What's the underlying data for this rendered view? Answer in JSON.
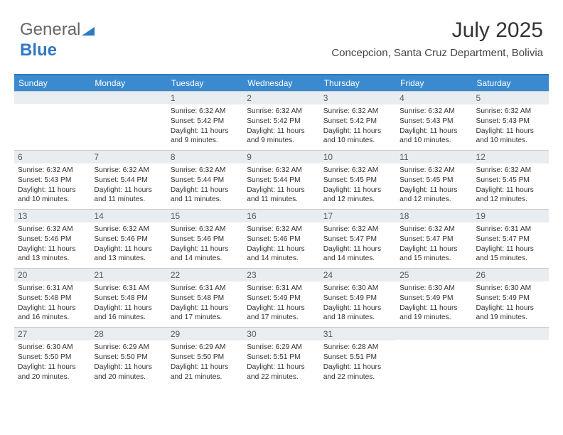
{
  "brand": {
    "part1": "General",
    "part2": "Blue"
  },
  "title": "July 2025",
  "location": "Concepcion, Santa Cruz Department, Bolivia",
  "colors": {
    "header_bg": "#3b8ad0",
    "accent_line": "#2f78c4",
    "daynum_bg": "#e9edf0",
    "text": "#333333"
  },
  "day_headers": [
    "Sunday",
    "Monday",
    "Tuesday",
    "Wednesday",
    "Thursday",
    "Friday",
    "Saturday"
  ],
  "weeks": [
    [
      {
        "n": "",
        "sr": "",
        "ss": "",
        "dl": ""
      },
      {
        "n": "",
        "sr": "",
        "ss": "",
        "dl": ""
      },
      {
        "n": "1",
        "sr": "Sunrise: 6:32 AM",
        "ss": "Sunset: 5:42 PM",
        "dl": "Daylight: 11 hours and 9 minutes."
      },
      {
        "n": "2",
        "sr": "Sunrise: 6:32 AM",
        "ss": "Sunset: 5:42 PM",
        "dl": "Daylight: 11 hours and 9 minutes."
      },
      {
        "n": "3",
        "sr": "Sunrise: 6:32 AM",
        "ss": "Sunset: 5:42 PM",
        "dl": "Daylight: 11 hours and 10 minutes."
      },
      {
        "n": "4",
        "sr": "Sunrise: 6:32 AM",
        "ss": "Sunset: 5:43 PM",
        "dl": "Daylight: 11 hours and 10 minutes."
      },
      {
        "n": "5",
        "sr": "Sunrise: 6:32 AM",
        "ss": "Sunset: 5:43 PM",
        "dl": "Daylight: 11 hours and 10 minutes."
      }
    ],
    [
      {
        "n": "6",
        "sr": "Sunrise: 6:32 AM",
        "ss": "Sunset: 5:43 PM",
        "dl": "Daylight: 11 hours and 10 minutes."
      },
      {
        "n": "7",
        "sr": "Sunrise: 6:32 AM",
        "ss": "Sunset: 5:44 PM",
        "dl": "Daylight: 11 hours and 11 minutes."
      },
      {
        "n": "8",
        "sr": "Sunrise: 6:32 AM",
        "ss": "Sunset: 5:44 PM",
        "dl": "Daylight: 11 hours and 11 minutes."
      },
      {
        "n": "9",
        "sr": "Sunrise: 6:32 AM",
        "ss": "Sunset: 5:44 PM",
        "dl": "Daylight: 11 hours and 11 minutes."
      },
      {
        "n": "10",
        "sr": "Sunrise: 6:32 AM",
        "ss": "Sunset: 5:45 PM",
        "dl": "Daylight: 11 hours and 12 minutes."
      },
      {
        "n": "11",
        "sr": "Sunrise: 6:32 AM",
        "ss": "Sunset: 5:45 PM",
        "dl": "Daylight: 11 hours and 12 minutes."
      },
      {
        "n": "12",
        "sr": "Sunrise: 6:32 AM",
        "ss": "Sunset: 5:45 PM",
        "dl": "Daylight: 11 hours and 12 minutes."
      }
    ],
    [
      {
        "n": "13",
        "sr": "Sunrise: 6:32 AM",
        "ss": "Sunset: 5:46 PM",
        "dl": "Daylight: 11 hours and 13 minutes."
      },
      {
        "n": "14",
        "sr": "Sunrise: 6:32 AM",
        "ss": "Sunset: 5:46 PM",
        "dl": "Daylight: 11 hours and 13 minutes."
      },
      {
        "n": "15",
        "sr": "Sunrise: 6:32 AM",
        "ss": "Sunset: 5:46 PM",
        "dl": "Daylight: 11 hours and 14 minutes."
      },
      {
        "n": "16",
        "sr": "Sunrise: 6:32 AM",
        "ss": "Sunset: 5:46 PM",
        "dl": "Daylight: 11 hours and 14 minutes."
      },
      {
        "n": "17",
        "sr": "Sunrise: 6:32 AM",
        "ss": "Sunset: 5:47 PM",
        "dl": "Daylight: 11 hours and 14 minutes."
      },
      {
        "n": "18",
        "sr": "Sunrise: 6:32 AM",
        "ss": "Sunset: 5:47 PM",
        "dl": "Daylight: 11 hours and 15 minutes."
      },
      {
        "n": "19",
        "sr": "Sunrise: 6:31 AM",
        "ss": "Sunset: 5:47 PM",
        "dl": "Daylight: 11 hours and 15 minutes."
      }
    ],
    [
      {
        "n": "20",
        "sr": "Sunrise: 6:31 AM",
        "ss": "Sunset: 5:48 PM",
        "dl": "Daylight: 11 hours and 16 minutes."
      },
      {
        "n": "21",
        "sr": "Sunrise: 6:31 AM",
        "ss": "Sunset: 5:48 PM",
        "dl": "Daylight: 11 hours and 16 minutes."
      },
      {
        "n": "22",
        "sr": "Sunrise: 6:31 AM",
        "ss": "Sunset: 5:48 PM",
        "dl": "Daylight: 11 hours and 17 minutes."
      },
      {
        "n": "23",
        "sr": "Sunrise: 6:31 AM",
        "ss": "Sunset: 5:49 PM",
        "dl": "Daylight: 11 hours and 17 minutes."
      },
      {
        "n": "24",
        "sr": "Sunrise: 6:30 AM",
        "ss": "Sunset: 5:49 PM",
        "dl": "Daylight: 11 hours and 18 minutes."
      },
      {
        "n": "25",
        "sr": "Sunrise: 6:30 AM",
        "ss": "Sunset: 5:49 PM",
        "dl": "Daylight: 11 hours and 19 minutes."
      },
      {
        "n": "26",
        "sr": "Sunrise: 6:30 AM",
        "ss": "Sunset: 5:49 PM",
        "dl": "Daylight: 11 hours and 19 minutes."
      }
    ],
    [
      {
        "n": "27",
        "sr": "Sunrise: 6:30 AM",
        "ss": "Sunset: 5:50 PM",
        "dl": "Daylight: 11 hours and 20 minutes."
      },
      {
        "n": "28",
        "sr": "Sunrise: 6:29 AM",
        "ss": "Sunset: 5:50 PM",
        "dl": "Daylight: 11 hours and 20 minutes."
      },
      {
        "n": "29",
        "sr": "Sunrise: 6:29 AM",
        "ss": "Sunset: 5:50 PM",
        "dl": "Daylight: 11 hours and 21 minutes."
      },
      {
        "n": "30",
        "sr": "Sunrise: 6:29 AM",
        "ss": "Sunset: 5:51 PM",
        "dl": "Daylight: 11 hours and 22 minutes."
      },
      {
        "n": "31",
        "sr": "Sunrise: 6:28 AM",
        "ss": "Sunset: 5:51 PM",
        "dl": "Daylight: 11 hours and 22 minutes."
      },
      {
        "n": "",
        "sr": "",
        "ss": "",
        "dl": ""
      },
      {
        "n": "",
        "sr": "",
        "ss": "",
        "dl": ""
      }
    ]
  ]
}
